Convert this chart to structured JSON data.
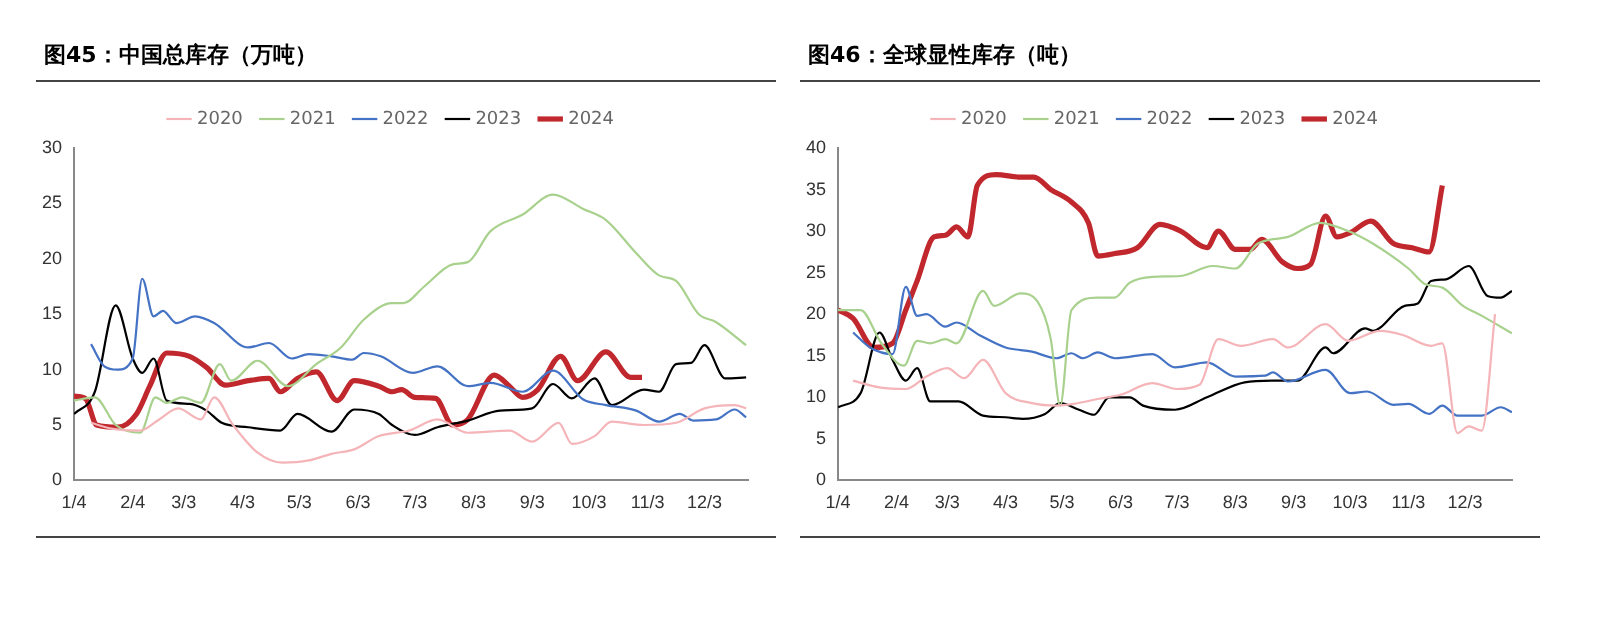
{
  "chart_data": [
    {
      "type": "line",
      "title": "图45：中国总库存（万吨）",
      "legend": "top",
      "grid": false,
      "marker": "none",
      "line_style": "solid",
      "xlim": [
        "--01-04",
        "--12-26"
      ],
      "xticks": [
        {
          "value": "--01-04",
          "label": "1/4"
        },
        {
          "value": "--02-04",
          "label": "2/4"
        },
        {
          "value": "--03-03",
          "label": "3/3"
        },
        {
          "value": "--04-03",
          "label": "4/3"
        },
        {
          "value": "--05-03",
          "label": "5/3"
        },
        {
          "value": "--06-03",
          "label": "6/3"
        },
        {
          "value": "--07-03",
          "label": "7/3"
        },
        {
          "value": "--08-03",
          "label": "8/3"
        },
        {
          "value": "--09-03",
          "label": "9/3"
        },
        {
          "value": "--10-03",
          "label": "10/3"
        },
        {
          "value": "--11-03",
          "label": "11/3"
        },
        {
          "value": "--12-03",
          "label": "12/3"
        }
      ],
      "ylim": [
        0,
        30
      ],
      "yticks": [
        0,
        5,
        10,
        15,
        20,
        25,
        30
      ],
      "series": [
        {
          "name": "2020",
          "color": "#f4b4b8",
          "x": [
            "--01-13",
            "--01-23",
            "--02-08",
            "--02-18",
            "--02-28",
            "--03-12",
            "--03-19",
            "--03-29",
            "--04-11",
            "--04-24",
            "--05-08",
            "--05-20",
            "--06-01",
            "--06-14",
            "--06-30",
            "--07-15",
            "--07-31",
            "--08-22",
            "--09-03",
            "--09-17",
            "--09-24",
            "--10-06",
            "--10-15",
            "--11-01",
            "--11-18",
            "--12-03",
            "--12-19",
            "--12-25"
          ],
          "values": [
            5.2,
            4.7,
            4.5,
            5.5,
            6.5,
            5.5,
            7.5,
            5,
            2.5,
            1.6,
            1.8,
            2.4,
            2.8,
            4,
            4.5,
            5.5,
            4.3,
            4.5,
            3.5,
            5.2,
            3.3,
            4,
            5.3,
            5,
            5.2,
            6.5,
            6.8,
            6.5
          ]
        },
        {
          "name": "2021",
          "color": "#a9d18e",
          "x": [
            "--01-04",
            "--01-15",
            "--01-26",
            "--02-08",
            "--02-16",
            "--02-22",
            "--03-02",
            "--03-12",
            "--03-22",
            "--03-28",
            "--04-11",
            "--04-27",
            "--05-12",
            "--05-25",
            "--06-06",
            "--06-21",
            "--06-27",
            "--07-08",
            "--07-23",
            "--07-31",
            "--08-12",
            "--08-29",
            "--09-14",
            "--09-30",
            "--10-12",
            "--10-28",
            "--11-09",
            "--11-18",
            "--11-30",
            "--12-09",
            "--12-25"
          ],
          "values": [
            7.2,
            7.5,
            5,
            4.3,
            7.5,
            7,
            7.5,
            7,
            10.5,
            9,
            10.8,
            8.5,
            10.5,
            12,
            14.5,
            16,
            16,
            17.5,
            19.5,
            19.7,
            22.5,
            24,
            25.8,
            24.5,
            23.5,
            20.5,
            18.5,
            18,
            15,
            14.3,
            12.2
          ]
        },
        {
          "name": "2022",
          "color": "#4472c4",
          "x": [
            "--01-13",
            "--01-20",
            "--01-27",
            "--02-04",
            "--02-09",
            "--02-15",
            "--02-20",
            "--02-27",
            "--03-09",
            "--03-19",
            "--04-06",
            "--04-17",
            "--04-29",
            "--05-08",
            "--05-20",
            "--05-31",
            "--06-06",
            "--06-15",
            "--07-02",
            "--07-15",
            "--07-31",
            "--08-12",
            "--08-29",
            "--09-14",
            "--09-30",
            "--10-12",
            "--10-28",
            "--11-09",
            "--11-20",
            "--11-27",
            "--12-09",
            "--12-19",
            "--12-25"
          ],
          "values": [
            12.3,
            10.3,
            10,
            11,
            18.2,
            14.8,
            15.3,
            14.2,
            14.8,
            14.2,
            12,
            12.4,
            11,
            11.4,
            11.2,
            10.9,
            11.5,
            11.2,
            9.7,
            10.3,
            8.5,
            8.8,
            8,
            9.9,
            7.3,
            6.8,
            6.3,
            5.3,
            6,
            5.4,
            5.5,
            6.4,
            5.7
          ]
        },
        {
          "name": "2023",
          "color": "#000000",
          "x": [
            "--01-04",
            "--01-15",
            "--01-26",
            "--02-04",
            "--02-09",
            "--02-15",
            "--02-22",
            "--03-06",
            "--03-15",
            "--03-23",
            "--04-06",
            "--04-23",
            "--05-02",
            "--05-20",
            "--06-01",
            "--06-14",
            "--06-21",
            "--07-03",
            "--07-15",
            "--07-31",
            "--08-17",
            "--09-03",
            "--09-14",
            "--09-24",
            "--10-06",
            "--10-15",
            "--11-01",
            "--11-09",
            "--11-18",
            "--11-26",
            "--12-03",
            "--12-14",
            "--12-25"
          ],
          "values": [
            6,
            8,
            15.8,
            11,
            9.7,
            11,
            7.2,
            6.9,
            6.3,
            5.2,
            4.8,
            4.5,
            6,
            4.4,
            6.4,
            6,
            5,
            4.1,
            4.8,
            5.4,
            6.3,
            6.5,
            8.7,
            7.4,
            9.2,
            6.8,
            8.2,
            8,
            10.5,
            10.6,
            12.2,
            9.2,
            9.3
          ]
        },
        {
          "name": "2024",
          "color": "#c0282d",
          "x": [
            "--01-04",
            "--01-10",
            "--01-16",
            "--01-27",
            "--02-06",
            "--02-13",
            "--02-22",
            "--03-06",
            "--03-15",
            "--03-25",
            "--04-06",
            "--04-17",
            "--04-23",
            "--05-02",
            "--05-12",
            "--05-23",
            "--06-01",
            "--06-14",
            "--06-21",
            "--06-26",
            "--07-03",
            "--07-14",
            "--07-23",
            "--07-31",
            "--08-14",
            "--08-22",
            "--08-29",
            "--09-06",
            "--09-18",
            "--09-27",
            "--10-12",
            "--10-25",
            "--10-31"
          ],
          "values": [
            7.6,
            7.4,
            5,
            4.8,
            6,
            8.5,
            11.5,
            11.2,
            10.2,
            8.6,
            9,
            9.2,
            8,
            9.2,
            9.8,
            7.2,
            9,
            8.5,
            8,
            8.2,
            7.5,
            7.4,
            5,
            5.5,
            9.5,
            8.5,
            7.5,
            8.2,
            11.2,
            9,
            11.6,
            9.3,
            9.3
          ]
        }
      ]
    },
    {
      "type": "line",
      "title": "图46：全球显性库存（吨）",
      "legend": "top",
      "grid": false,
      "marker": "none",
      "line_style": "solid",
      "xlim": [
        "--01-04",
        "--12-28"
      ],
      "xticks": [
        {
          "value": "--01-04",
          "label": "1/4"
        },
        {
          "value": "--02-04",
          "label": "2/4"
        },
        {
          "value": "--03-03",
          "label": "3/3"
        },
        {
          "value": "--04-03",
          "label": "4/3"
        },
        {
          "value": "--05-03",
          "label": "5/3"
        },
        {
          "value": "--06-03",
          "label": "6/3"
        },
        {
          "value": "--07-03",
          "label": "7/3"
        },
        {
          "value": "--08-03",
          "label": "8/3"
        },
        {
          "value": "--09-03",
          "label": "9/3"
        },
        {
          "value": "--10-03",
          "label": "10/3"
        },
        {
          "value": "--11-03",
          "label": "11/3"
        },
        {
          "value": "--12-03",
          "label": "12/3"
        }
      ],
      "ylim": [
        0,
        40
      ],
      "yticks": [
        0,
        5,
        10,
        15,
        20,
        25,
        30,
        35,
        40
      ],
      "series": [
        {
          "name": "2020",
          "color": "#f4b4b8",
          "x": [
            "--01-12",
            "--01-26",
            "--02-09",
            "--02-20",
            "--03-03",
            "--03-12",
            "--03-22",
            "--04-03",
            "--04-17",
            "--04-30",
            "--05-09",
            "--05-22",
            "--06-03",
            "--06-20",
            "--07-03",
            "--07-15",
            "--07-25",
            "--08-06",
            "--08-23",
            "--08-31",
            "--09-20",
            "--10-02",
            "--10-19",
            "--10-31",
            "--11-15",
            "--11-21",
            "--11-29",
            "--12-05",
            "--12-12",
            "--12-19"
          ],
          "values": [
            12,
            11.2,
            11,
            12.5,
            13.5,
            12.3,
            14.5,
            10.5,
            9.3,
            9,
            9.2,
            9.8,
            10.3,
            11.7,
            11,
            11.5,
            17,
            16.2,
            17,
            16,
            18.8,
            16.8,
            18,
            17.5,
            16.2,
            16.5,
            5.7,
            6.5,
            6,
            20
          ]
        },
        {
          "name": "2021",
          "color": "#a9d18e",
          "x": [
            "--01-04",
            "--01-16",
            "--01-27",
            "--02-08",
            "--02-15",
            "--02-22",
            "--03-02",
            "--03-08",
            "--03-22",
            "--03-28",
            "--04-11",
            "--04-20",
            "--04-27",
            "--05-02",
            "--05-08",
            "--05-22",
            "--05-31",
            "--06-08",
            "--06-20",
            "--07-05",
            "--07-22",
            "--08-03",
            "--08-15",
            "--08-31",
            "--09-17",
            "--10-02",
            "--10-15",
            "--11-03",
            "--11-12",
            "--11-21",
            "--12-02",
            "--12-12",
            "--12-28"
          ],
          "values": [
            20.5,
            20.5,
            16.5,
            13.8,
            16.8,
            16.5,
            17,
            16.5,
            22.8,
            21,
            22.5,
            21.5,
            17,
            9,
            20.5,
            22,
            22,
            23.8,
            24.5,
            24.6,
            25.8,
            25.5,
            28.5,
            29.3,
            31,
            30,
            28.5,
            25.5,
            23.6,
            23.2,
            21,
            19.8,
            17.7
          ]
        },
        {
          "name": "2022",
          "color": "#4472c4",
          "x": [
            "--01-12",
            "--01-21",
            "--02-02",
            "--02-09",
            "--02-15",
            "--02-20",
            "--03-02",
            "--03-08",
            "--03-20",
            "--04-03",
            "--04-17",
            "--04-30",
            "--05-08",
            "--05-14",
            "--05-22",
            "--05-31",
            "--06-20",
            "--07-02",
            "--07-19",
            "--08-03",
            "--08-19",
            "--08-23",
            "--08-31",
            "--09-20",
            "--10-03",
            "--10-12",
            "--10-26",
            "--11-03",
            "--11-14",
            "--11-21",
            "--11-29",
            "--12-12",
            "--12-22",
            "--12-28"
          ],
          "values": [
            17.8,
            16,
            15.2,
            23.3,
            19.8,
            20,
            18.5,
            19,
            17.5,
            16,
            15.5,
            14.7,
            15.3,
            14.7,
            15.4,
            14.7,
            15.2,
            13.6,
            14.2,
            12.5,
            12.6,
            13,
            11.9,
            13.3,
            10.5,
            10.7,
            9.1,
            9.2,
            8,
            9,
            7.8,
            7.8,
            8.8,
            8.2
          ]
        },
        {
          "name": "2023",
          "color": "#000000",
          "x": [
            "--01-04",
            "--01-16",
            "--01-26",
            "--02-02",
            "--02-09",
            "--02-15",
            "--02-22",
            "--03-09",
            "--03-22",
            "--04-03",
            "--04-12",
            "--04-24",
            "--05-02",
            "--05-12",
            "--05-20",
            "--05-28",
            "--06-08",
            "--06-15",
            "--07-02",
            "--07-19",
            "--08-08",
            "--08-23",
            "--09-05",
            "--09-20",
            "--09-24",
            "--10-11",
            "--10-15",
            "--11-01",
            "--11-08",
            "--11-15",
            "--11-23",
            "--12-05",
            "--12-15",
            "--12-22",
            "--12-28"
          ],
          "values": [
            8.8,
            10.5,
            17.8,
            14.5,
            12,
            13.5,
            9.5,
            9.5,
            7.8,
            7.6,
            7.4,
            8,
            9.3,
            8.5,
            7.9,
            10,
            10,
            9,
            8.5,
            10,
            11.8,
            12,
            12,
            16,
            15.3,
            18.3,
            18,
            21,
            21.3,
            24,
            24.2,
            25.8,
            22.2,
            22,
            22.8
          ]
        },
        {
          "name": "2024",
          "color": "#c0282d",
          "x": [
            "--01-04",
            "--01-12",
            "--01-23",
            "--02-02",
            "--02-09",
            "--02-15",
            "--02-24",
            "--03-02",
            "--03-08",
            "--03-14",
            "--03-19",
            "--03-29",
            "--04-11",
            "--04-18",
            "--04-27",
            "--05-08",
            "--05-17",
            "--05-22",
            "--05-31",
            "--06-12",
            "--06-24",
            "--07-05",
            "--07-19",
            "--07-25",
            "--08-03",
            "--08-11",
            "--08-17",
            "--08-28",
            "--09-05",
            "--09-12",
            "--09-20",
            "--09-26",
            "--10-03",
            "--10-14",
            "--10-26",
            "--11-05",
            "--11-14",
            "--11-21"
          ],
          "values": [
            20.5,
            19.5,
            16,
            16.5,
            20.5,
            24,
            29.3,
            29.5,
            30.5,
            29.3,
            35.5,
            36.8,
            36.5,
            36.5,
            35,
            33.5,
            31,
            27,
            27.3,
            28,
            30.8,
            30,
            28,
            30,
            27.8,
            27.8,
            29,
            26.3,
            25.5,
            26,
            31.8,
            29.3,
            29.8,
            31.2,
            28.5,
            28,
            27.5,
            35.5
          ]
        }
      ]
    }
  ]
}
